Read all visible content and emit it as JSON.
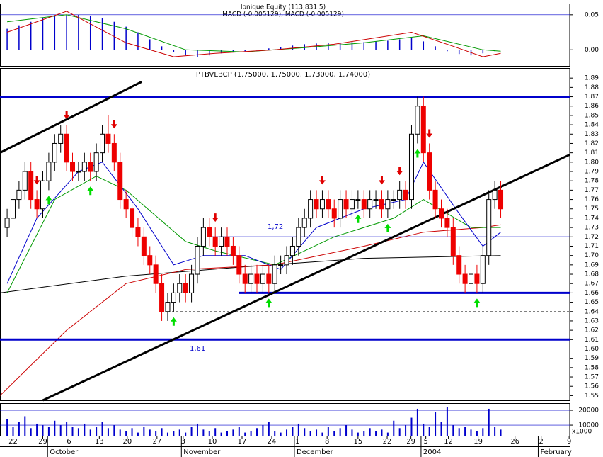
{
  "chart_data": [
    {
      "type": "macd",
      "title": "Ionique Equity (113,831.5)",
      "subtitle": "MACD (-0.005129), MACD (-0.005129)",
      "ylim": [
        -0.023,
        0.065
      ],
      "yticks": [
        0.05,
        {
          "value": 0,
          "label": "0.00"
        }
      ],
      "hist_color": "#0000cc",
      "hist_x": [
        0,
        2,
        4,
        6,
        8,
        10,
        12,
        14,
        16,
        18,
        20,
        22,
        24,
        26,
        28,
        30,
        32,
        34,
        36,
        38,
        40,
        42,
        44,
        46,
        48,
        50,
        52,
        54,
        56,
        58,
        60,
        62,
        64,
        66,
        68,
        70,
        72,
        74,
        76,
        78,
        80,
        82
      ],
      "hist": [
        0.03,
        0.035,
        0.04,
        0.045,
        0.048,
        0.05,
        0.05,
        0.048,
        0.045,
        0.04,
        0.033,
        0.025,
        0.015,
        0.005,
        -0.003,
        -0.008,
        -0.01,
        -0.008,
        -0.005,
        -0.003,
        -0.002,
        -0.001,
        0.002,
        0.004,
        0.006,
        0.008,
        0.009,
        0.01,
        0.01,
        0.011,
        0.011,
        0.012,
        0.013,
        0.015,
        0.018,
        0.012,
        0.005,
        -0.002,
        -0.006,
        -0.008,
        -0.005,
        -0.002
      ],
      "lines": [
        {
          "color": "#009900",
          "x": [
            0,
            10,
            20,
            30,
            40,
            50,
            60,
            70,
            80,
            83
          ],
          "values": [
            0.04,
            0.05,
            0.03,
            0.0,
            -0.003,
            0.003,
            0.01,
            0.02,
            0.0,
            -0.002
          ]
        },
        {
          "color": "#cc0000",
          "x": [
            0,
            10,
            20,
            28,
            35,
            45,
            55,
            68,
            75,
            80,
            83
          ],
          "values": [
            0.025,
            0.055,
            0.01,
            -0.01,
            -0.005,
            0.0,
            0.008,
            0.025,
            0.005,
            -0.01,
            -0.005
          ]
        }
      ]
    },
    {
      "type": "candlestick",
      "title": "PTBVLBCP (1.75000, 1.75000, 1.73000, 1.74000)",
      "xlim": [
        -1.2,
        94.6
      ],
      "ylim": [
        1.545,
        1.9
      ],
      "yticks": [
        1.55,
        1.56,
        1.57,
        1.58,
        1.59,
        {
          "value": 1.6,
          "label": "1.60"
        },
        1.61,
        1.62,
        1.63,
        1.64,
        1.65,
        1.66,
        1.67,
        1.68,
        1.69,
        {
          "value": 1.7,
          "label": "1.70"
        },
        1.71,
        1.72,
        1.73,
        1.74,
        1.75,
        1.76,
        1.77,
        1.78,
        1.79,
        {
          "value": 1.8,
          "label": "1.80"
        },
        1.81,
        1.82,
        1.83,
        1.84,
        1.85,
        1.86,
        1.87,
        1.88,
        1.89
      ],
      "xticks": [
        {
          "value": 1,
          "label": "22"
        },
        {
          "value": 6,
          "label": "29"
        },
        {
          "value": 10.4,
          "label": "6"
        },
        {
          "value": 15.5,
          "label": "13"
        },
        {
          "value": 20.2,
          "label": "20"
        },
        {
          "value": 25.2,
          "label": "27"
        },
        {
          "value": 29.6,
          "label": "3"
        },
        {
          "value": 34.5,
          "label": "10"
        },
        {
          "value": 39.5,
          "label": "17"
        },
        {
          "value": 44.5,
          "label": "24"
        },
        {
          "value": 48.8,
          "label": "1"
        },
        {
          "value": 53.8,
          "label": "8"
        },
        {
          "value": 59,
          "label": "15"
        },
        {
          "value": 63.9,
          "label": "22"
        },
        {
          "value": 67.9,
          "label": "29"
        },
        {
          "value": 70.4,
          "label": "5"
        },
        {
          "value": 74.2,
          "label": "12"
        },
        {
          "value": 79.2,
          "label": "19"
        },
        {
          "value": 85.4,
          "label": "26"
        },
        {
          "value": 89.8,
          "label": "2"
        },
        {
          "value": 94.5,
          "label": "9"
        }
      ],
      "month_labels": [
        {
          "value": 6.8,
          "label": "October"
        },
        {
          "value": 29.3,
          "label": "November"
        },
        {
          "value": 48.3,
          "label": "December"
        },
        {
          "value": 69.6,
          "label": "2004"
        },
        {
          "value": 89.3,
          "label": "February"
        }
      ],
      "up_color": "#ffffff",
      "down_color": "#ee0000",
      "open": [
        1.73,
        1.74,
        1.76,
        1.77,
        1.79,
        1.76,
        1.75,
        1.78,
        1.8,
        1.82,
        1.83,
        1.8,
        1.79,
        1.79,
        1.8,
        1.79,
        1.81,
        1.83,
        1.82,
        1.8,
        1.76,
        1.75,
        1.73,
        1.72,
        1.7,
        1.69,
        1.67,
        1.64,
        1.65,
        1.66,
        1.67,
        1.66,
        1.68,
        1.71,
        1.73,
        1.72,
        1.71,
        1.72,
        1.71,
        1.7,
        1.68,
        1.67,
        1.68,
        1.67,
        1.68,
        1.67,
        1.69,
        1.69,
        1.7,
        1.71,
        1.73,
        1.74,
        1.76,
        1.75,
        1.76,
        1.75,
        1.74,
        1.76,
        1.75,
        1.76,
        1.76,
        1.75,
        1.76,
        1.76,
        1.75,
        1.76,
        1.76,
        1.77,
        1.76,
        1.83,
        1.86,
        1.81,
        1.77,
        1.75,
        1.74,
        1.73,
        1.7,
        1.68,
        1.67,
        1.68,
        1.67,
        1.7,
        1.76,
        1.77
      ],
      "high": [
        1.75,
        1.77,
        1.78,
        1.8,
        1.8,
        1.77,
        1.79,
        1.81,
        1.83,
        1.84,
        1.84,
        1.81,
        1.8,
        1.81,
        1.81,
        1.82,
        1.84,
        1.85,
        1.83,
        1.81,
        1.77,
        1.76,
        1.74,
        1.73,
        1.71,
        1.7,
        1.68,
        1.66,
        1.67,
        1.68,
        1.68,
        1.69,
        1.72,
        1.74,
        1.74,
        1.73,
        1.73,
        1.73,
        1.72,
        1.71,
        1.69,
        1.69,
        1.69,
        1.69,
        1.69,
        1.7,
        1.7,
        1.71,
        1.72,
        1.74,
        1.75,
        1.77,
        1.77,
        1.77,
        1.77,
        1.76,
        1.77,
        1.77,
        1.77,
        1.77,
        1.77,
        1.77,
        1.77,
        1.77,
        1.77,
        1.77,
        1.78,
        1.78,
        1.84,
        1.87,
        1.87,
        1.82,
        1.78,
        1.76,
        1.75,
        1.74,
        1.71,
        1.69,
        1.69,
        1.69,
        1.71,
        1.77,
        1.78,
        1.78
      ],
      "low": [
        1.72,
        1.73,
        1.75,
        1.76,
        1.75,
        1.74,
        1.74,
        1.77,
        1.79,
        1.81,
        1.79,
        1.78,
        1.78,
        1.78,
        1.78,
        1.78,
        1.8,
        1.81,
        1.79,
        1.75,
        1.74,
        1.72,
        1.71,
        1.69,
        1.68,
        1.66,
        1.63,
        1.63,
        1.64,
        1.65,
        1.65,
        1.65,
        1.67,
        1.7,
        1.71,
        1.7,
        1.7,
        1.7,
        1.69,
        1.67,
        1.66,
        1.66,
        1.66,
        1.66,
        1.66,
        1.66,
        1.68,
        1.68,
        1.69,
        1.7,
        1.72,
        1.73,
        1.74,
        1.74,
        1.74,
        1.73,
        1.73,
        1.74,
        1.74,
        1.75,
        1.74,
        1.74,
        1.75,
        1.74,
        1.74,
        1.75,
        1.75,
        1.75,
        1.75,
        1.82,
        1.8,
        1.76,
        1.74,
        1.73,
        1.72,
        1.69,
        1.67,
        1.66,
        1.66,
        1.66,
        1.66,
        1.69,
        1.75,
        1.74
      ],
      "close": [
        1.74,
        1.76,
        1.77,
        1.79,
        1.76,
        1.75,
        1.78,
        1.8,
        1.82,
        1.83,
        1.8,
        1.79,
        1.79,
        1.8,
        1.79,
        1.81,
        1.83,
        1.82,
        1.8,
        1.76,
        1.75,
        1.73,
        1.72,
        1.7,
        1.69,
        1.67,
        1.64,
        1.65,
        1.66,
        1.67,
        1.66,
        1.68,
        1.71,
        1.73,
        1.72,
        1.71,
        1.72,
        1.71,
        1.7,
        1.68,
        1.67,
        1.68,
        1.67,
        1.68,
        1.67,
        1.69,
        1.69,
        1.7,
        1.71,
        1.73,
        1.74,
        1.76,
        1.75,
        1.76,
        1.75,
        1.74,
        1.76,
        1.75,
        1.76,
        1.76,
        1.75,
        1.76,
        1.76,
        1.75,
        1.76,
        1.76,
        1.77,
        1.76,
        1.83,
        1.86,
        1.81,
        1.77,
        1.75,
        1.74,
        1.73,
        1.7,
        1.68,
        1.67,
        1.68,
        1.67,
        1.7,
        1.76,
        1.77,
        1.75
      ],
      "lines": [
        {
          "color": "#000000",
          "width": 1,
          "x": [
            -1.2,
            20,
            40,
            60,
            83
          ],
          "values": [
            1.66,
            1.678,
            1.688,
            1.697,
            1.7
          ]
        },
        {
          "color": "#cc0000",
          "width": 1,
          "x": [
            -1.2,
            10,
            20,
            30,
            45,
            60,
            70,
            80,
            83
          ],
          "values": [
            1.55,
            1.62,
            1.67,
            1.685,
            1.69,
            1.71,
            1.725,
            1.73,
            1.733
          ]
        },
        {
          "color": "#009900",
          "width": 1,
          "x": [
            0,
            8,
            15,
            20,
            30,
            35,
            45,
            55,
            65,
            70,
            78,
            83
          ],
          "values": [
            1.66,
            1.76,
            1.785,
            1.77,
            1.715,
            1.705,
            1.69,
            1.72,
            1.74,
            1.76,
            1.73,
            1.73
          ]
        },
        {
          "color": "#0000cc",
          "width": 1,
          "x": [
            0,
            5,
            12,
            16,
            22,
            28,
            33,
            40,
            46,
            52,
            60,
            67,
            70,
            76,
            80,
            83
          ],
          "values": [
            1.67,
            1.74,
            1.79,
            1.8,
            1.75,
            1.69,
            1.7,
            1.7,
            1.685,
            1.73,
            1.75,
            1.76,
            1.8,
            1.745,
            1.71,
            1.725
          ]
        },
        {
          "color": "#0000cc",
          "width": 3,
          "x": [
            -1.2,
            94.6
          ],
          "values": [
            1.87,
            1.87
          ]
        },
        {
          "color": "#0000cc",
          "width": 3,
          "x": [
            -1.2,
            94.6
          ],
          "values": [
            1.61,
            1.61
          ]
        },
        {
          "color": "#0000cc",
          "width": 3,
          "x": [
            39,
            94.6
          ],
          "values": [
            1.66,
            1.66
          ]
        },
        {
          "color": "#0000cc",
          "width": 1,
          "x": [
            34,
            94.6
          ],
          "values": [
            1.72,
            1.72
          ]
        },
        {
          "color": "#555555",
          "width": 1,
          "dash": true,
          "x": [
            27,
            94.6
          ],
          "values": [
            1.64,
            1.64
          ]
        },
        {
          "color": "#000000",
          "width": 3,
          "x": [
            -1.2,
            22.6
          ],
          "values": [
            1.81,
            1.886
          ]
        },
        {
          "color": "#000000",
          "width": 3,
          "x": [
            6,
            94.6
          ],
          "values": [
            1.545,
            1.808
          ]
        }
      ],
      "sell_signals": [
        5,
        10,
        18,
        35,
        53,
        63,
        66,
        71
      ],
      "buy_signals": [
        7,
        14,
        28,
        44,
        59,
        64,
        69,
        79
      ],
      "annotations": [
        "1,72",
        "1,61"
      ]
    },
    {
      "type": "bar",
      "unit_label": "x1000",
      "color": "#0000cc",
      "ylim": [
        2900,
        24300
      ],
      "yticks": [
        20000,
        10000
      ],
      "values": [
        14000,
        9000,
        12000,
        16000,
        8000,
        11000,
        10000,
        9000,
        13000,
        10000,
        12000,
        9000,
        8000,
        11000,
        7000,
        9000,
        12000,
        8000,
        10000,
        7000,
        6000,
        8000,
        5000,
        9000,
        7000,
        6000,
        8000,
        5000,
        6000,
        7000,
        5000,
        9000,
        11000,
        7000,
        6000,
        8000,
        5000,
        6000,
        7000,
        9000,
        5000,
        6000,
        8000,
        10000,
        12000,
        6000,
        5000,
        7000,
        9000,
        11000,
        8000,
        6000,
        7000,
        5000,
        9000,
        6000,
        8000,
        10000,
        7000,
        5000,
        6000,
        8000,
        6000,
        7000,
        5000,
        13000,
        8000,
        10000,
        15000,
        21000,
        11000,
        9000,
        19000,
        12000,
        22000,
        10000,
        8000,
        9000,
        7000,
        6000,
        8000,
        21000,
        9000,
        7000
      ]
    }
  ]
}
